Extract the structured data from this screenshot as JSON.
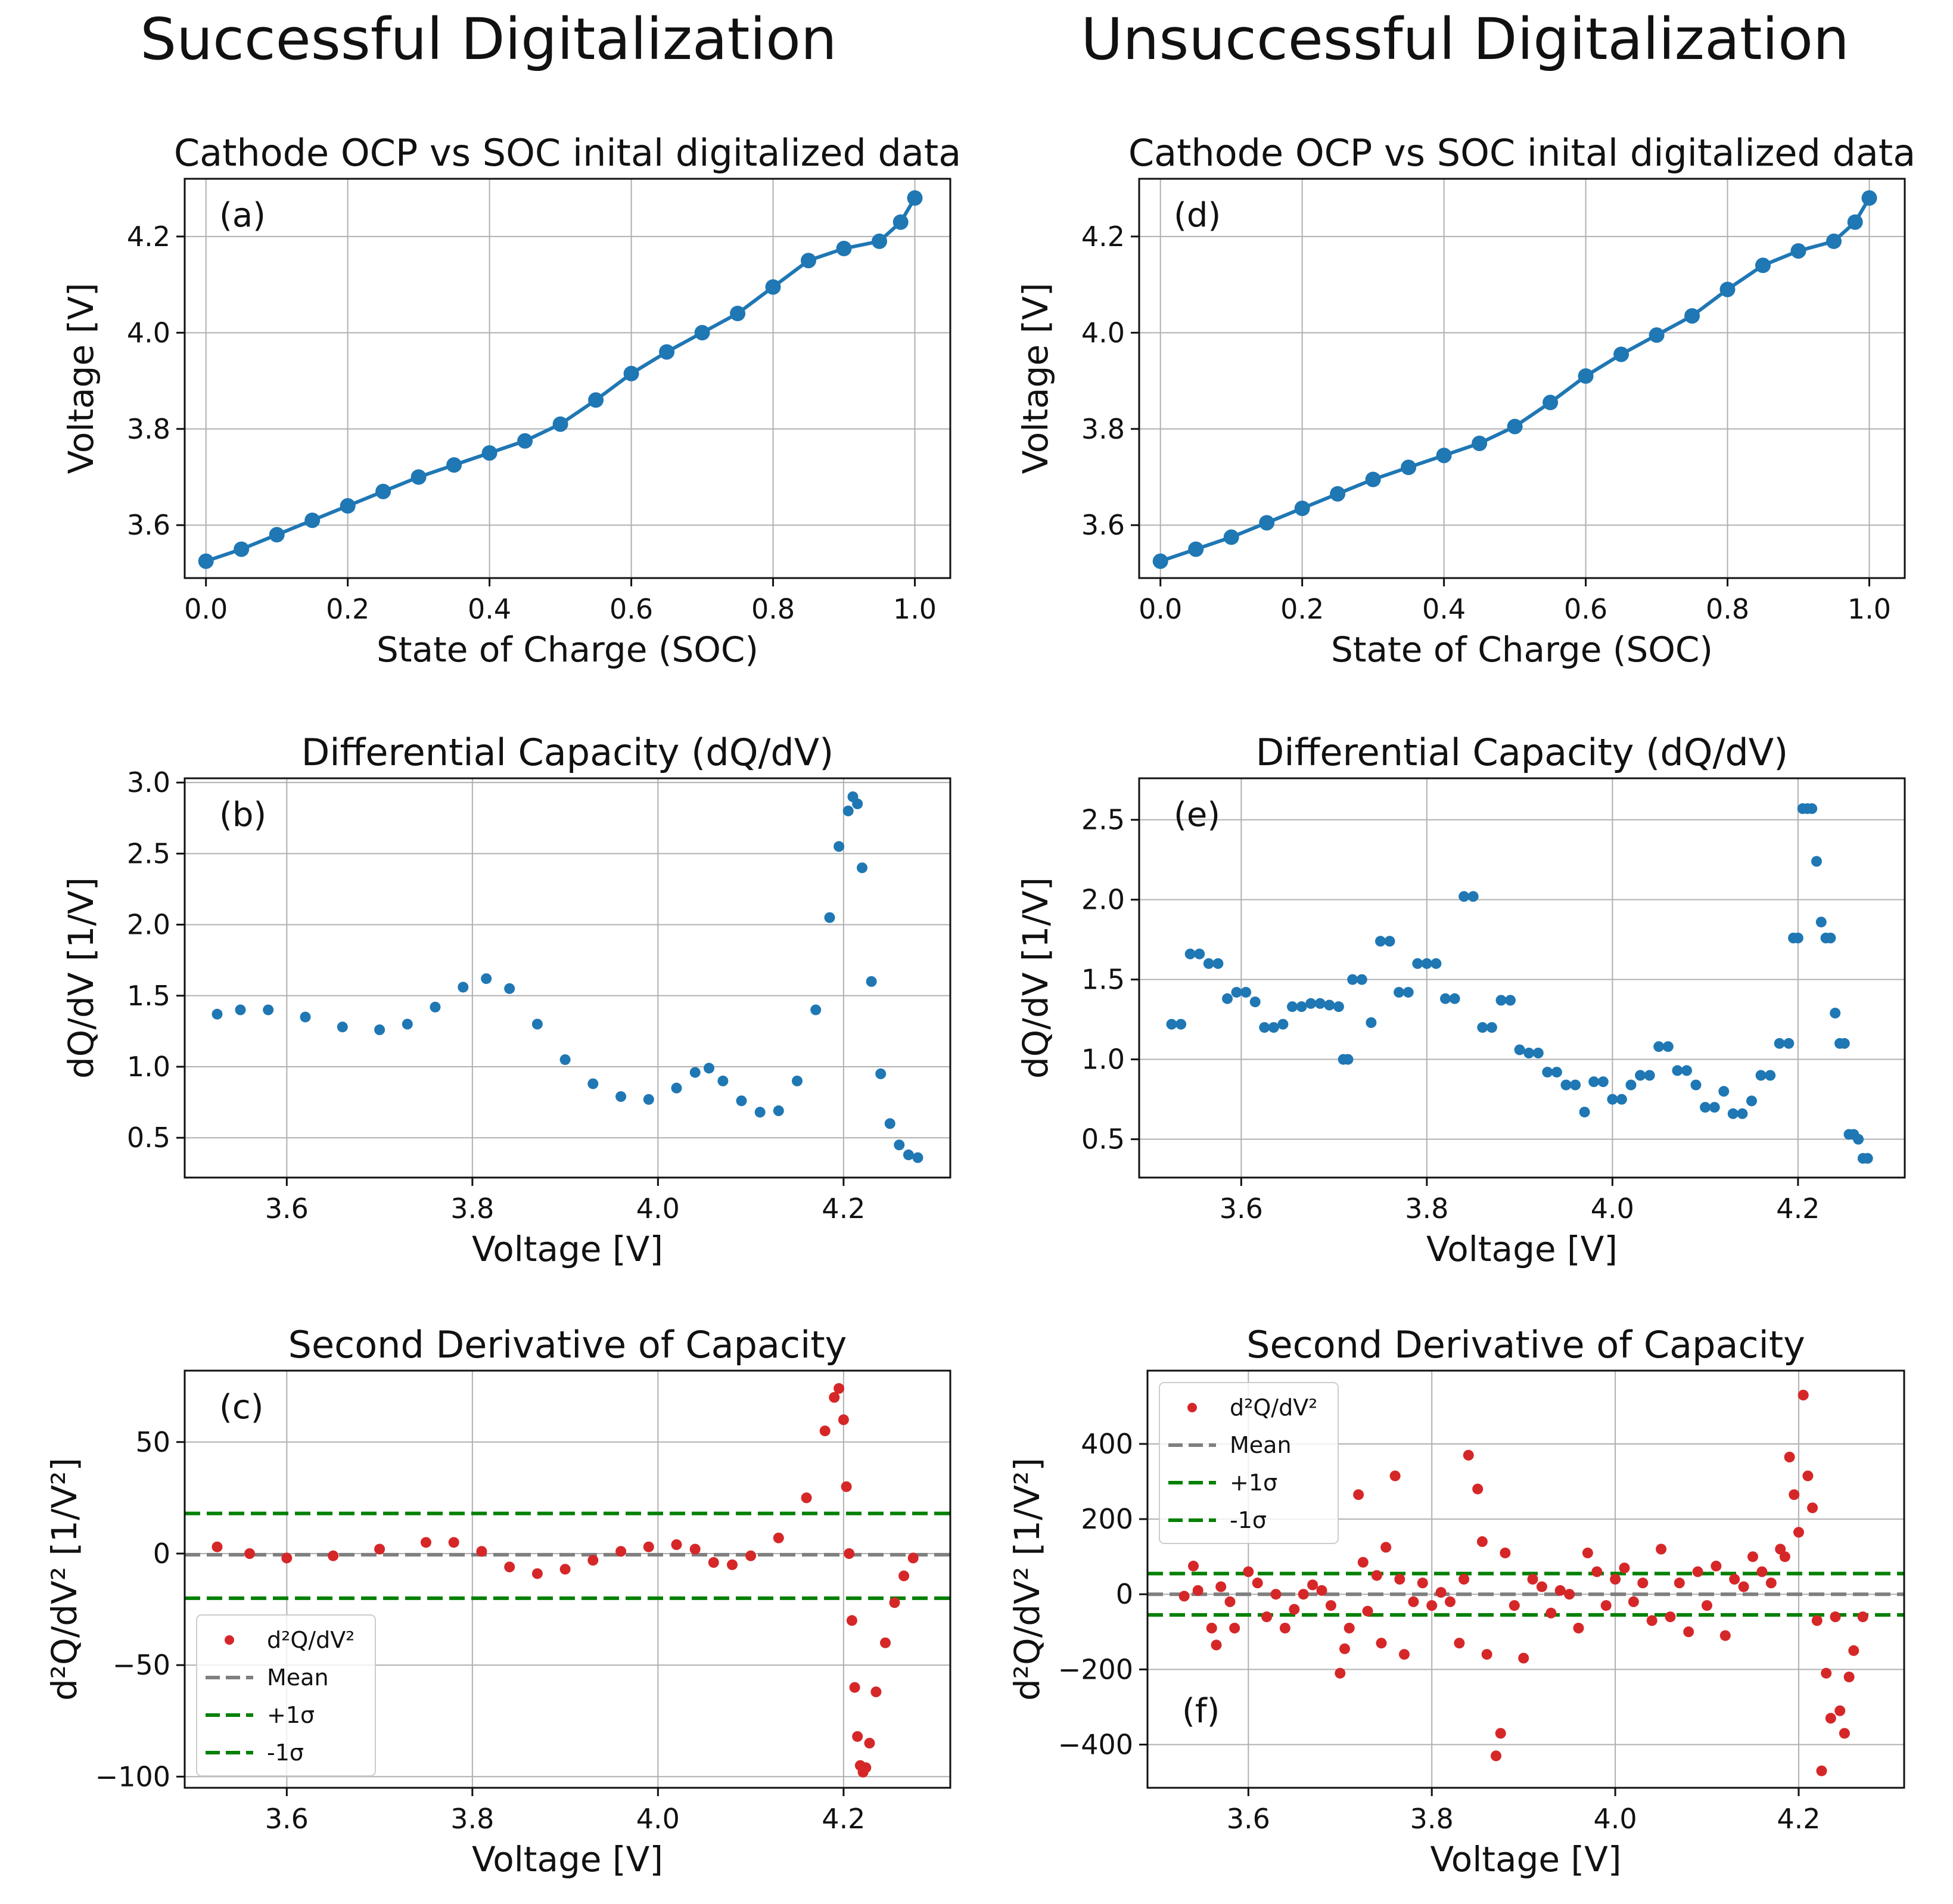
{
  "headings": {
    "left": "Successful Digitalization",
    "right": "Unsuccessful Digitalization"
  },
  "colors": {
    "blue": "#1f77b4",
    "red": "#d62728",
    "gray": "#7f7f7f",
    "green": "#008000",
    "grid": "#b0b0b0"
  },
  "chart_data": [
    {
      "id": "a",
      "type": "line",
      "panel_label": "(a)",
      "title": "Cathode OCP vs SOC inital digitalized data",
      "xlabel": "State of Charge (SOC)",
      "ylabel": "Voltage [V]",
      "xlim": [
        -0.03,
        1.05
      ],
      "ylim": [
        3.49,
        4.32
      ],
      "xticks": [
        0.0,
        0.2,
        0.4,
        0.6,
        0.8,
        1.0
      ],
      "xtick_labels": [
        "0.0",
        "0.2",
        "0.4",
        "0.6",
        "0.8",
        "1.0"
      ],
      "yticks": [
        3.6,
        3.8,
        4.0,
        4.2
      ],
      "ytick_labels": [
        "3.6",
        "3.8",
        "4.0",
        "4.2"
      ],
      "grid": true,
      "series": [
        {
          "name": "OCP",
          "color": "#1f77b4",
          "marker": "o",
          "line": true,
          "x": [
            0.0,
            0.05,
            0.1,
            0.15,
            0.2,
            0.25,
            0.3,
            0.35,
            0.4,
            0.45,
            0.5,
            0.55,
            0.6,
            0.65,
            0.7,
            0.75,
            0.8,
            0.85,
            0.9,
            0.95,
            0.98,
            1.0
          ],
          "y": [
            3.525,
            3.55,
            3.58,
            3.61,
            3.64,
            3.67,
            3.7,
            3.725,
            3.75,
            3.775,
            3.81,
            3.86,
            3.915,
            3.96,
            4.0,
            4.04,
            4.095,
            4.15,
            4.175,
            4.19,
            4.23,
            4.28
          ]
        }
      ]
    },
    {
      "id": "b",
      "type": "scatter",
      "panel_label": "(b)",
      "title": "Differential Capacity (dQ/dV)",
      "xlabel": "Voltage [V]",
      "ylabel": "dQ/dV [1/V]",
      "xlim": [
        3.49,
        4.315
      ],
      "ylim": [
        0.22,
        3.03
      ],
      "xticks": [
        3.6,
        3.8,
        4.0,
        4.2
      ],
      "xtick_labels": [
        "3.6",
        "3.8",
        "4.0",
        "4.2"
      ],
      "yticks": [
        0.5,
        1.0,
        1.5,
        2.0,
        2.5,
        3.0
      ],
      "ytick_labels": [
        "0.5",
        "1.0",
        "1.5",
        "2.0",
        "2.5",
        "3.0"
      ],
      "grid": true,
      "series": [
        {
          "name": "dQ/dV",
          "color": "#1f77b4",
          "marker": "o",
          "line": false,
          "x": [
            3.525,
            3.55,
            3.58,
            3.62,
            3.66,
            3.7,
            3.73,
            3.76,
            3.79,
            3.815,
            3.84,
            3.87,
            3.9,
            3.93,
            3.96,
            3.99,
            4.02,
            4.04,
            4.055,
            4.07,
            4.09,
            4.11,
            4.13,
            4.15,
            4.17,
            4.185,
            4.195,
            4.205,
            4.21,
            4.215,
            4.22,
            4.23,
            4.24,
            4.25,
            4.26,
            4.27,
            4.28
          ],
          "y": [
            1.37,
            1.4,
            1.4,
            1.35,
            1.28,
            1.26,
            1.3,
            1.42,
            1.56,
            1.62,
            1.55,
            1.3,
            1.05,
            0.88,
            0.79,
            0.77,
            0.85,
            0.96,
            0.99,
            0.9,
            0.76,
            0.68,
            0.69,
            0.9,
            1.4,
            2.05,
            2.55,
            2.8,
            2.9,
            2.85,
            2.4,
            1.6,
            0.95,
            0.6,
            0.45,
            0.38,
            0.36
          ]
        }
      ]
    },
    {
      "id": "c",
      "type": "scatter",
      "panel_label": "(c)",
      "title": "Second Derivative of Capacity",
      "xlabel": "Voltage [V]",
      "ylabel": "d²Q/dV² [1/V²]",
      "xlim": [
        3.49,
        4.315
      ],
      "ylim": [
        -105,
        82
      ],
      "xticks": [
        3.6,
        3.8,
        4.0,
        4.2
      ],
      "xtick_labels": [
        "3.6",
        "3.8",
        "4.0",
        "4.2"
      ],
      "yticks": [
        -100,
        -50,
        0,
        50
      ],
      "ytick_labels": [
        "−100",
        "−50",
        "0",
        "50"
      ],
      "grid": true,
      "mean": -0.5,
      "plus_sigma": 18,
      "minus_sigma": -20,
      "legend": {
        "position": "lower-left",
        "entries": [
          "d²Q/dV²",
          "Mean",
          "+1σ",
          "-1σ"
        ]
      },
      "series": [
        {
          "name": "d²Q/dV²",
          "color": "#d62728",
          "marker": "o",
          "line": false,
          "x": [
            3.525,
            3.56,
            3.6,
            3.65,
            3.7,
            3.75,
            3.78,
            3.81,
            3.84,
            3.87,
            3.9,
            3.93,
            3.96,
            3.99,
            4.02,
            4.04,
            4.06,
            4.08,
            4.1,
            4.13,
            4.16,
            4.18,
            4.19,
            4.195,
            4.2,
            4.203,
            4.206,
            4.209,
            4.212,
            4.215,
            4.218,
            4.221,
            4.224,
            4.228,
            4.235,
            4.245,
            4.255,
            4.265,
            4.275
          ],
          "y": [
            3,
            0,
            -2,
            -1,
            2,
            5,
            5,
            1,
            -6,
            -9,
            -7,
            -3,
            1,
            3,
            4,
            2,
            -4,
            -5,
            -1,
            7,
            25,
            55,
            70,
            74,
            60,
            30,
            0,
            -30,
            -60,
            -82,
            -95,
            -98,
            -96,
            -85,
            -62,
            -40,
            -22,
            -10,
            -2
          ]
        }
      ]
    },
    {
      "id": "d",
      "type": "line",
      "panel_label": "(d)",
      "title": "Cathode OCP vs SOC inital digitalized data",
      "xlabel": "State of Charge (SOC)",
      "ylabel": "Voltage [V]",
      "xlim": [
        -0.03,
        1.05
      ],
      "ylim": [
        3.49,
        4.32
      ],
      "xticks": [
        0.0,
        0.2,
        0.4,
        0.6,
        0.8,
        1.0
      ],
      "xtick_labels": [
        "0.0",
        "0.2",
        "0.4",
        "0.6",
        "0.8",
        "1.0"
      ],
      "yticks": [
        3.6,
        3.8,
        4.0,
        4.2
      ],
      "ytick_labels": [
        "3.6",
        "3.8",
        "4.0",
        "4.2"
      ],
      "grid": true,
      "series": [
        {
          "name": "OCP",
          "color": "#1f77b4",
          "marker": "o",
          "line": true,
          "x": [
            0.0,
            0.05,
            0.1,
            0.15,
            0.2,
            0.25,
            0.3,
            0.35,
            0.4,
            0.45,
            0.5,
            0.55,
            0.6,
            0.65,
            0.7,
            0.75,
            0.8,
            0.85,
            0.9,
            0.95,
            0.98,
            1.0
          ],
          "y": [
            3.525,
            3.55,
            3.575,
            3.605,
            3.635,
            3.665,
            3.695,
            3.72,
            3.745,
            3.77,
            3.805,
            3.855,
            3.91,
            3.955,
            3.995,
            4.035,
            4.09,
            4.14,
            4.17,
            4.19,
            4.23,
            4.28
          ]
        }
      ]
    },
    {
      "id": "e",
      "type": "scatter",
      "panel_label": "(e)",
      "title": "Differential Capacity (dQ/dV)",
      "xlabel": "Voltage [V]",
      "ylabel": "dQ/dV [1/V]",
      "xlim": [
        3.49,
        4.315
      ],
      "ylim": [
        0.26,
        2.76
      ],
      "xticks": [
        3.6,
        3.8,
        4.0,
        4.2
      ],
      "xtick_labels": [
        "3.6",
        "3.8",
        "4.0",
        "4.2"
      ],
      "yticks": [
        0.5,
        1.0,
        1.5,
        2.0,
        2.5
      ],
      "ytick_labels": [
        "0.5",
        "1.0",
        "1.5",
        "2.0",
        "2.5"
      ],
      "grid": true,
      "series": [
        {
          "name": "dQ/dV",
          "color": "#1f77b4",
          "marker": "o",
          "line": false,
          "x": [
            3.525,
            3.535,
            3.545,
            3.555,
            3.565,
            3.575,
            3.585,
            3.595,
            3.605,
            3.615,
            3.625,
            3.635,
            3.645,
            3.655,
            3.665,
            3.675,
            3.685,
            3.695,
            3.705,
            3.71,
            3.715,
            3.72,
            3.73,
            3.74,
            3.75,
            3.76,
            3.77,
            3.78,
            3.79,
            3.8,
            3.81,
            3.82,
            3.83,
            3.84,
            3.85,
            3.86,
            3.87,
            3.88,
            3.89,
            3.9,
            3.91,
            3.92,
            3.93,
            3.94,
            3.95,
            3.96,
            3.97,
            3.98,
            3.99,
            4.0,
            4.01,
            4.02,
            4.03,
            4.04,
            4.05,
            4.06,
            4.07,
            4.08,
            4.09,
            4.1,
            4.11,
            4.12,
            4.13,
            4.14,
            4.15,
            4.16,
            4.17,
            4.18,
            4.19,
            4.195,
            4.2,
            4.205,
            4.21,
            4.215,
            4.22,
            4.225,
            4.23,
            4.235,
            4.24,
            4.245,
            4.25,
            4.255,
            4.26,
            4.265,
            4.27,
            4.275
          ],
          "y": [
            1.22,
            1.22,
            1.66,
            1.66,
            1.6,
            1.6,
            1.38,
            1.42,
            1.42,
            1.36,
            1.2,
            1.2,
            1.22,
            1.33,
            1.33,
            1.35,
            1.35,
            1.34,
            1.33,
            1.0,
            1.0,
            1.5,
            1.5,
            1.23,
            1.74,
            1.74,
            1.42,
            1.42,
            1.6,
            1.6,
            1.6,
            1.38,
            1.38,
            2.02,
            2.02,
            1.2,
            1.2,
            1.37,
            1.37,
            1.06,
            1.04,
            1.04,
            0.92,
            0.92,
            0.84,
            0.84,
            0.67,
            0.86,
            0.86,
            0.75,
            0.75,
            0.84,
            0.9,
            0.9,
            1.08,
            1.08,
            0.93,
            0.93,
            0.84,
            0.7,
            0.7,
            0.8,
            0.66,
            0.66,
            0.74,
            0.9,
            0.9,
            1.1,
            1.1,
            1.76,
            1.76,
            2.57,
            2.57,
            2.57,
            2.24,
            1.86,
            1.76,
            1.76,
            1.29,
            1.1,
            1.1,
            0.53,
            0.53,
            0.5,
            0.38,
            0.38
          ]
        }
      ]
    },
    {
      "id": "f",
      "type": "scatter",
      "panel_label": "(f)",
      "title": "Second Derivative of Capacity",
      "xlabel": "Voltage [V]",
      "ylabel": "d²Q/dV² [1/V²]",
      "xlim": [
        3.49,
        4.315
      ],
      "ylim": [
        -515,
        595
      ],
      "xticks": [
        3.6,
        3.8,
        4.0,
        4.2
      ],
      "xtick_labels": [
        "3.6",
        "3.8",
        "4.0",
        "4.2"
      ],
      "yticks": [
        -400,
        -200,
        0,
        200,
        400
      ],
      "ytick_labels": [
        "−400",
        "−200",
        "0",
        "200",
        "400"
      ],
      "grid": true,
      "mean": 0,
      "plus_sigma": 55,
      "minus_sigma": -55,
      "legend": {
        "position": "upper-left",
        "entries": [
          "d²Q/dV²",
          "Mean",
          "+1σ",
          "-1σ"
        ]
      },
      "series": [
        {
          "name": "d²Q/dV²",
          "color": "#d62728",
          "marker": "o",
          "line": false,
          "x": [
            3.53,
            3.54,
            3.545,
            3.56,
            3.565,
            3.57,
            3.58,
            3.585,
            3.6,
            3.61,
            3.62,
            3.63,
            3.64,
            3.65,
            3.66,
            3.67,
            3.68,
            3.69,
            3.7,
            3.705,
            3.71,
            3.72,
            3.725,
            3.73,
            3.74,
            3.745,
            3.75,
            3.76,
            3.765,
            3.77,
            3.78,
            3.79,
            3.8,
            3.81,
            3.82,
            3.83,
            3.835,
            3.84,
            3.85,
            3.855,
            3.86,
            3.87,
            3.875,
            3.88,
            3.89,
            3.9,
            3.91,
            3.92,
            3.93,
            3.94,
            3.95,
            3.96,
            3.97,
            3.98,
            3.99,
            4.0,
            4.01,
            4.02,
            4.03,
            4.04,
            4.05,
            4.06,
            4.07,
            4.08,
            4.09,
            4.1,
            4.11,
            4.12,
            4.13,
            4.14,
            4.15,
            4.16,
            4.17,
            4.18,
            4.185,
            4.19,
            4.195,
            4.2,
            4.205,
            4.21,
            4.215,
            4.22,
            4.225,
            4.23,
            4.235,
            4.24,
            4.245,
            4.25,
            4.255,
            4.26,
            4.27
          ],
          "y": [
            -5,
            75,
            10,
            -90,
            -135,
            20,
            -20,
            -90,
            60,
            30,
            -60,
            0,
            -90,
            -40,
            0,
            25,
            10,
            -30,
            -210,
            -145,
            -90,
            265,
            85,
            -45,
            50,
            -130,
            125,
            315,
            40,
            -160,
            -20,
            30,
            -30,
            5,
            -20,
            -130,
            40,
            370,
            280,
            140,
            -160,
            -430,
            -370,
            110,
            -30,
            -170,
            40,
            20,
            -50,
            10,
            0,
            -90,
            110,
            60,
            -30,
            40,
            70,
            -20,
            30,
            -70,
            120,
            -60,
            30,
            -100,
            60,
            -30,
            75,
            -110,
            40,
            20,
            100,
            60,
            30,
            120,
            100,
            365,
            265,
            165,
            530,
            315,
            230,
            -70,
            -470,
            -210,
            -330,
            -60,
            -310,
            -370,
            -220,
            -150,
            -60
          ]
        }
      ]
    }
  ]
}
